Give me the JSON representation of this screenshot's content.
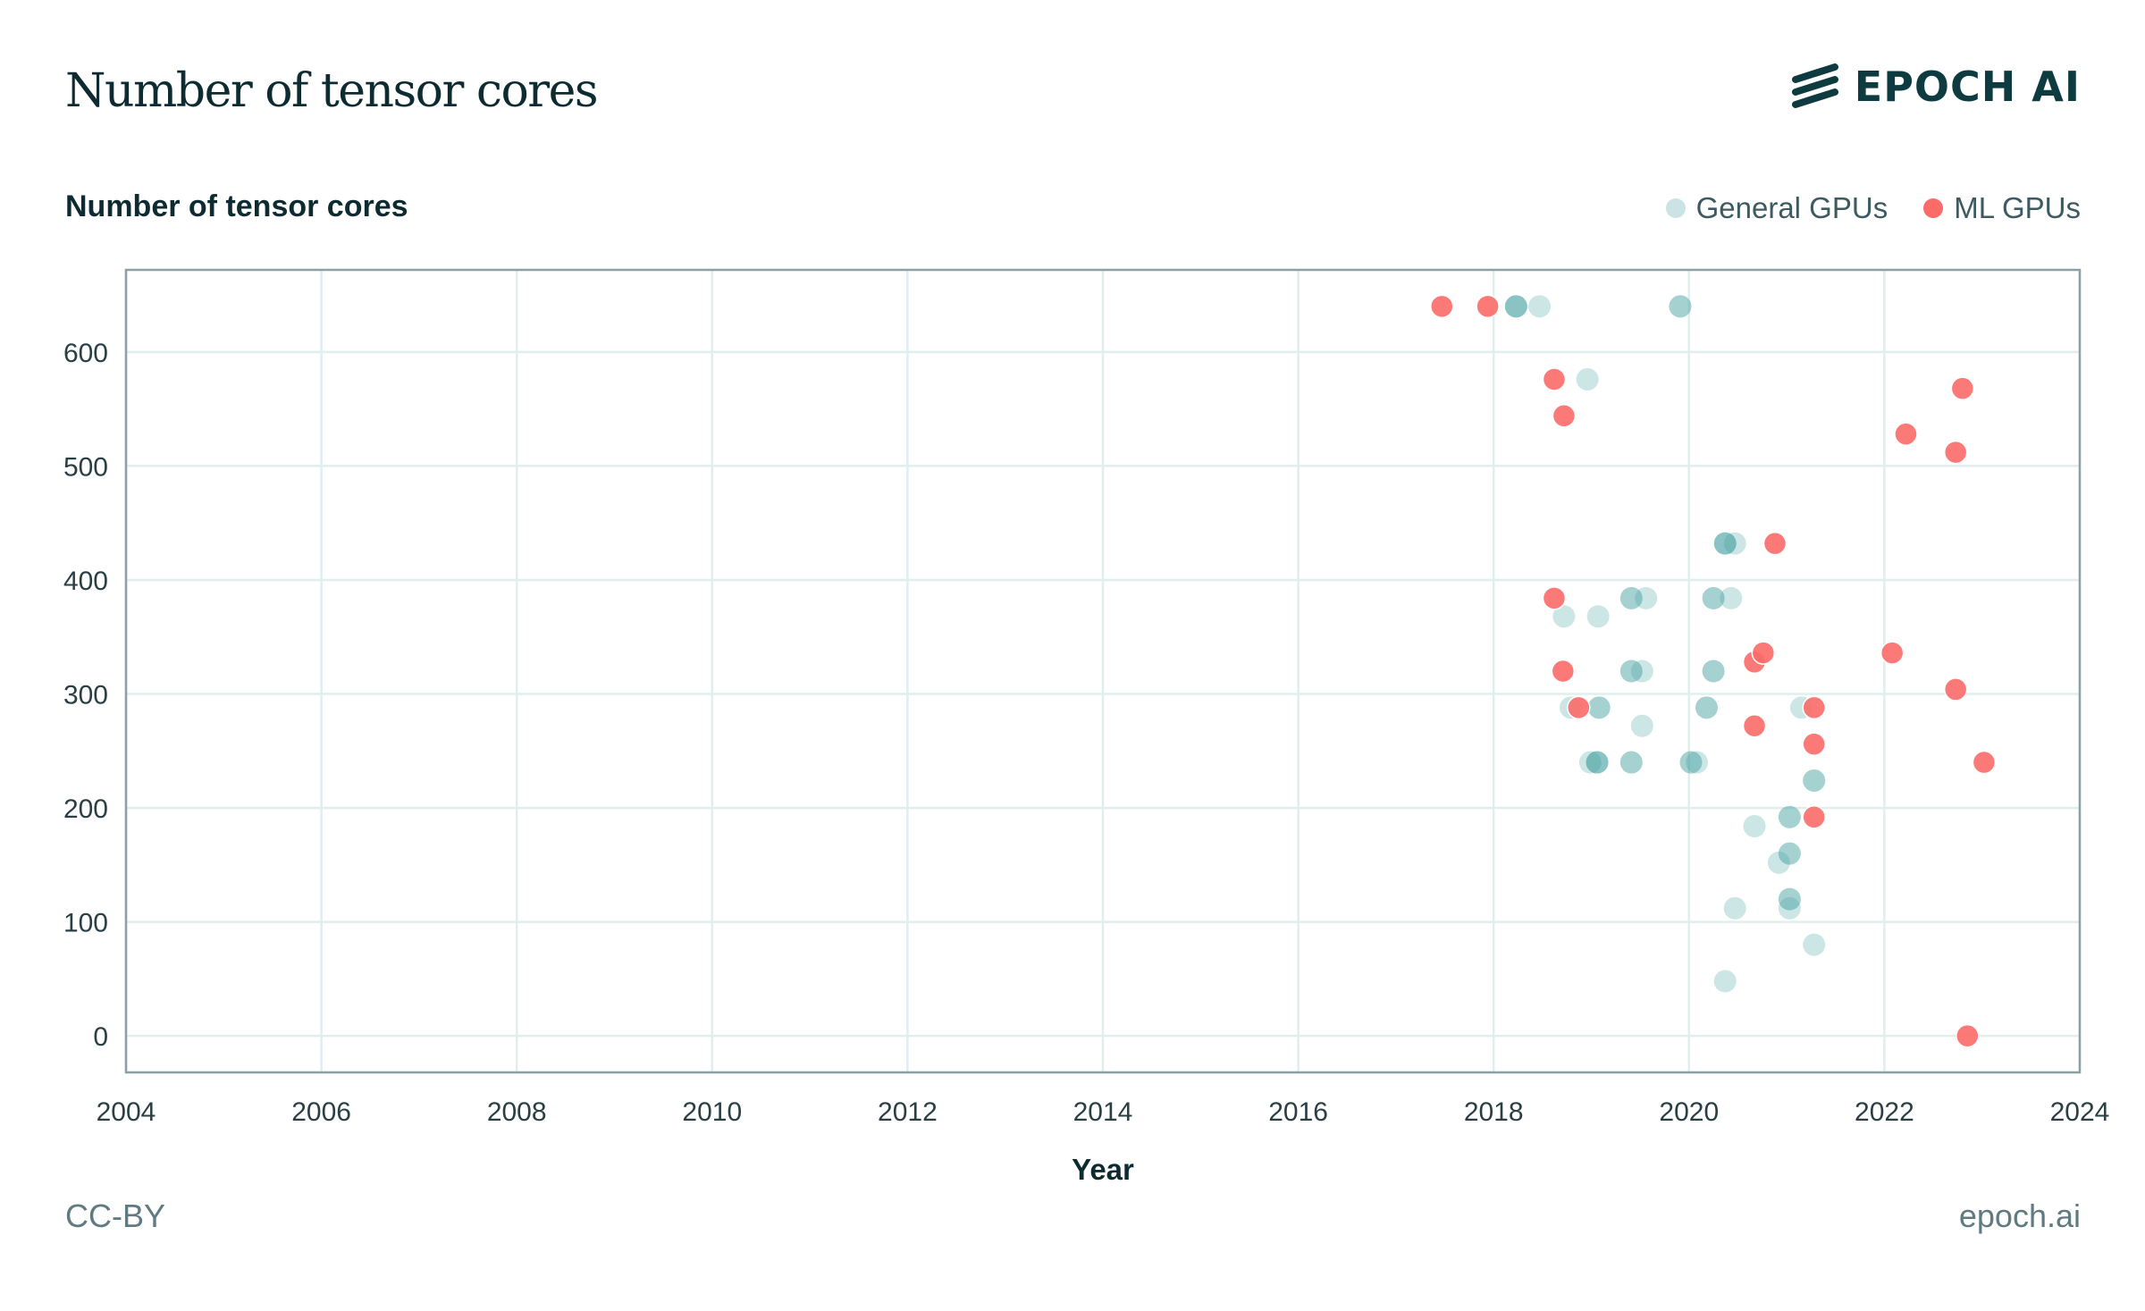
{
  "header": {
    "title": "Number of tensor cores",
    "logo_text": "EPOCH AI"
  },
  "footer": {
    "license": "CC-BY",
    "site": "epoch.ai"
  },
  "colors": {
    "general": "#3a9a9c",
    "ml": "#fb6b68",
    "grid": "#e0eeee",
    "axis": "#8aa0a5"
  },
  "chart_data": {
    "type": "scatter",
    "title": "Number of tensor cores",
    "ylabel": "Number of tensor cores",
    "xlabel": "Year",
    "xlim": [
      2004,
      2024
    ],
    "ylim": [
      -32,
      672
    ],
    "xticks": [
      2004,
      2006,
      2008,
      2010,
      2012,
      2014,
      2016,
      2018,
      2020,
      2022,
      2024
    ],
    "yticks": [
      0,
      100,
      200,
      300,
      400,
      500,
      600
    ],
    "grid": true,
    "legend_position": "top-right",
    "series": [
      {
        "name": "General GPUs",
        "points": [
          [
            2018.23,
            640
          ],
          [
            2018.23,
            640
          ],
          [
            2018.23,
            640
          ],
          [
            2018.47,
            640
          ],
          [
            2019.91,
            640
          ],
          [
            2019.91,
            640
          ],
          [
            2018.96,
            576
          ],
          [
            2018.72,
            368
          ],
          [
            2019.07,
            368
          ],
          [
            2019.41,
            384
          ],
          [
            2019.41,
            384
          ],
          [
            2019.56,
            384
          ],
          [
            2019.41,
            320
          ],
          [
            2019.41,
            320
          ],
          [
            2019.52,
            320
          ],
          [
            2019.52,
            272
          ],
          [
            2018.79,
            288
          ],
          [
            2019.08,
            288
          ],
          [
            2019.08,
            288
          ],
          [
            2018.99,
            240
          ],
          [
            2019.06,
            240
          ],
          [
            2019.06,
            240
          ],
          [
            2019.06,
            240
          ],
          [
            2019.41,
            240
          ],
          [
            2019.41,
            240
          ],
          [
            2020.02,
            240
          ],
          [
            2020.02,
            240
          ],
          [
            2020.08,
            240
          ],
          [
            2020.18,
            288
          ],
          [
            2020.18,
            288
          ],
          [
            2020.25,
            384
          ],
          [
            2020.25,
            384
          ],
          [
            2020.43,
            384
          ],
          [
            2020.25,
            320
          ],
          [
            2020.25,
            320
          ],
          [
            2020.37,
            432
          ],
          [
            2020.37,
            432
          ],
          [
            2020.37,
            432
          ],
          [
            2020.47,
            432
          ],
          [
            2021.15,
            288
          ],
          [
            2021.28,
            224
          ],
          [
            2021.28,
            224
          ],
          [
            2021.03,
            192
          ],
          [
            2021.03,
            192
          ],
          [
            2020.67,
            184
          ],
          [
            2021.03,
            160
          ],
          [
            2021.03,
            160
          ],
          [
            2020.92,
            152
          ],
          [
            2021.03,
            120
          ],
          [
            2021.03,
            120
          ],
          [
            2021.03,
            112
          ],
          [
            2020.47,
            112
          ],
          [
            2021.28,
            80
          ],
          [
            2020.37,
            48
          ]
        ]
      },
      {
        "name": "ML GPUs",
        "points": [
          [
            2017.47,
            640
          ],
          [
            2017.94,
            640
          ],
          [
            2018.62,
            576
          ],
          [
            2018.72,
            544
          ],
          [
            2018.62,
            384
          ],
          [
            2018.71,
            320
          ],
          [
            2018.87,
            288
          ],
          [
            2020.88,
            432
          ],
          [
            2020.67,
            328
          ],
          [
            2020.76,
            336
          ],
          [
            2020.67,
            272
          ],
          [
            2021.28,
            288
          ],
          [
            2021.28,
            256
          ],
          [
            2021.28,
            192
          ],
          [
            2022.08,
            336
          ],
          [
            2022.22,
            528
          ],
          [
            2022.73,
            512
          ],
          [
            2022.8,
            568
          ],
          [
            2022.73,
            304
          ],
          [
            2023.02,
            240
          ],
          [
            2022.85,
            0
          ]
        ]
      }
    ]
  }
}
